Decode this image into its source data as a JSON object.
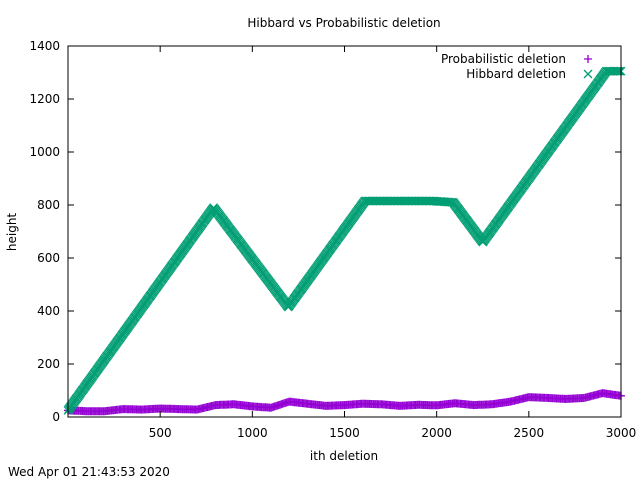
{
  "chart_data": {
    "type": "scatter",
    "title": "Hibbard vs Probabilistic deletion",
    "xlabel": "ith deletion",
    "ylabel": "height",
    "xlim": [
      0,
      3000
    ],
    "ylim": [
      0,
      1400
    ],
    "x_ticks": [
      500,
      1000,
      1500,
      2000,
      2500,
      3000
    ],
    "y_ticks": [
      0,
      200,
      400,
      600,
      800,
      1000,
      1200,
      1400
    ],
    "legend_position": "top-right",
    "grid": false,
    "series": [
      {
        "name": "Probabilistic deletion",
        "marker": "+",
        "color": "#9400d3",
        "points": [
          [
            0,
            25
          ],
          [
            100,
            22
          ],
          [
            200,
            22
          ],
          [
            300,
            30
          ],
          [
            400,
            28
          ],
          [
            500,
            32
          ],
          [
            600,
            30
          ],
          [
            700,
            28
          ],
          [
            800,
            45
          ],
          [
            900,
            48
          ],
          [
            1000,
            40
          ],
          [
            1100,
            35
          ],
          [
            1200,
            58
          ],
          [
            1300,
            50
          ],
          [
            1400,
            42
          ],
          [
            1500,
            45
          ],
          [
            1600,
            50
          ],
          [
            1700,
            48
          ],
          [
            1800,
            42
          ],
          [
            1900,
            46
          ],
          [
            2000,
            44
          ],
          [
            2100,
            52
          ],
          [
            2200,
            45
          ],
          [
            2300,
            48
          ],
          [
            2400,
            58
          ],
          [
            2500,
            75
          ],
          [
            2600,
            72
          ],
          [
            2700,
            68
          ],
          [
            2800,
            72
          ],
          [
            2900,
            90
          ],
          [
            3000,
            80
          ]
        ]
      },
      {
        "name": "Hibbard deletion",
        "marker": "x",
        "color": "#009e73",
        "points": [
          [
            0,
            25
          ],
          [
            790,
            790
          ],
          [
            1195,
            415
          ],
          [
            1610,
            815
          ],
          [
            1980,
            815
          ],
          [
            2090,
            810
          ],
          [
            2250,
            660
          ],
          [
            2920,
            1305
          ],
          [
            3000,
            1305
          ]
        ]
      }
    ]
  },
  "footer_timestamp": "Wed Apr 01 21:43:53 2020"
}
